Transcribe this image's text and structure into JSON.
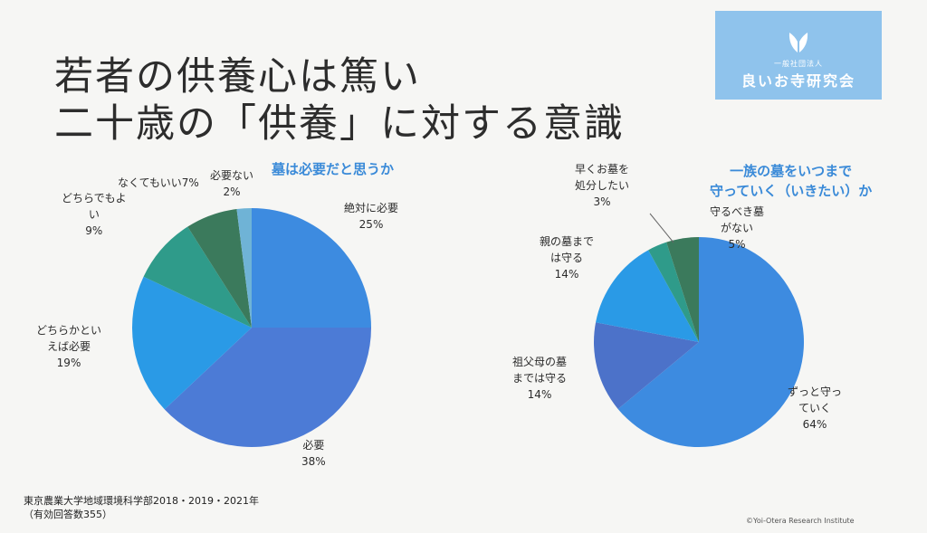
{
  "title": {
    "line1": "若者の供養心は篤い",
    "line2": "二十歳の「供養」に対する意識"
  },
  "logo": {
    "small": "一般社団法人",
    "name": "良いお寺研究会",
    "icon": "hands-icon"
  },
  "chart_data": [
    {
      "type": "pie",
      "title": "墓は必要だと思うか",
      "slices": [
        {
          "label": "絶対に必要",
          "value": 25,
          "color": "#3d8be0"
        },
        {
          "label": "必要",
          "value": 38,
          "color": "#4c7bd6"
        },
        {
          "label": "どちらかといえば必要",
          "value": 19,
          "color": "#2a9ae6"
        },
        {
          "label": "どちらでもよい",
          "value": 9,
          "color": "#2f9b8a"
        },
        {
          "label": "なくてもいい",
          "value": 7,
          "color": "#3b7a5c"
        },
        {
          "label": "必要ない",
          "value": 2,
          "color": "#6fb3d6"
        }
      ]
    },
    {
      "type": "pie",
      "title": "一族の墓をいつまで\n守っていく（いきたい）か",
      "slices": [
        {
          "label": "ずっと守っていく",
          "value": 64,
          "color": "#3d8be0"
        },
        {
          "label": "祖父母の墓までは守る",
          "value": 14,
          "color": "#4c72c9"
        },
        {
          "label": "親の墓までは守る",
          "value": 14,
          "color": "#2a9ae6"
        },
        {
          "label": "早くお墓を処分したい",
          "value": 3,
          "color": "#2f9b8a"
        },
        {
          "label": "守るべき墓がない",
          "value": 5,
          "color": "#3b7a5c"
        }
      ]
    }
  ],
  "labels1": {
    "s0": "絶対に必要\n25%",
    "s1": "必要\n38%",
    "s2": "どちらかとい\nえば必要\n19%",
    "s3": "どちらでもよ\nい\n9%",
    "s4": "なくてもいい7%",
    "s5": "必要ない\n2%"
  },
  "labels2": {
    "s0": "ずっと守っ\nていく\n64%",
    "s1": "祖父母の墓\nまでは守る\n14%",
    "s2": "親の墓まで\nは守る\n14%",
    "s3": "早くお墓を\n処分したい\n3%",
    "s4": "守るべき墓\nがない\n5%"
  },
  "footnote": "東京農業大学地域環境科学部2018・2019・2021年\n（有効回答数355）",
  "copyright": "©Yoi-Otera Research Institute"
}
